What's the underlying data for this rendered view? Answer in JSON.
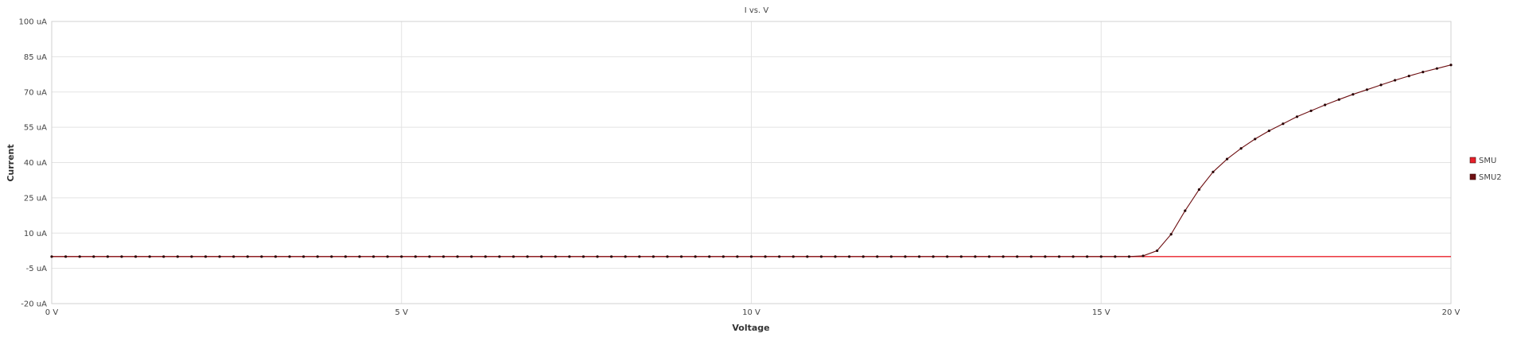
{
  "chart_data": {
    "type": "line",
    "title": "I vs. V",
    "xlabel": "Voltage",
    "ylabel": "Current",
    "xlim": [
      0,
      20
    ],
    "ylim": [
      -20,
      100
    ],
    "x_ticks": [
      {
        "value": 0,
        "label": "0 V"
      },
      {
        "value": 5,
        "label": "5 V"
      },
      {
        "value": 10,
        "label": "10 V"
      },
      {
        "value": 15,
        "label": "15 V"
      },
      {
        "value": 20,
        "label": "20 V"
      }
    ],
    "y_ticks": [
      {
        "value": 100,
        "label": "100 uA"
      },
      {
        "value": 85,
        "label": "85 uA"
      },
      {
        "value": 70,
        "label": "70 uA"
      },
      {
        "value": 55,
        "label": "55 uA"
      },
      {
        "value": 40,
        "label": "40 uA"
      },
      {
        "value": 25,
        "label": "25 uA"
      },
      {
        "value": 10,
        "label": "10 uA"
      },
      {
        "value": -5,
        "label": "-5 uA"
      },
      {
        "value": -20,
        "label": "-20 uA"
      }
    ],
    "grid": true,
    "legend_position": "right",
    "series": [
      {
        "name": "SMU",
        "color": "#e8202a",
        "marker": false,
        "x": [
          0,
          20
        ],
        "y": [
          0,
          0
        ]
      },
      {
        "name": "SMU2",
        "color": "#6e0f12",
        "marker": true,
        "x": [
          0,
          0.2,
          0.4,
          0.6,
          0.8,
          1.0,
          1.2,
          1.4,
          1.6,
          1.8,
          2.0,
          2.2,
          2.4,
          2.6,
          2.8,
          3.0,
          3.2,
          3.4,
          3.6,
          3.8,
          4.0,
          4.2,
          4.4,
          4.6,
          4.8,
          5.0,
          5.2,
          5.4,
          5.6,
          5.8,
          6.0,
          6.2,
          6.4,
          6.6,
          6.8,
          7.0,
          7.2,
          7.4,
          7.6,
          7.8,
          8.0,
          8.2,
          8.4,
          8.6,
          8.8,
          9.0,
          9.2,
          9.4,
          9.6,
          9.8,
          10.0,
          10.2,
          10.4,
          10.6,
          10.8,
          11.0,
          11.2,
          11.4,
          11.6,
          11.8,
          12.0,
          12.2,
          12.4,
          12.6,
          12.8,
          13.0,
          13.2,
          13.4,
          13.6,
          13.8,
          14.0,
          14.2,
          14.4,
          14.6,
          14.8,
          15.0,
          15.2,
          15.4,
          15.6,
          15.8,
          16.0,
          16.2,
          16.4,
          16.6,
          16.8,
          17.0,
          17.2,
          17.4,
          17.6,
          17.8,
          18.0,
          18.2,
          18.4,
          18.6,
          18.8,
          19.0,
          19.2,
          19.4,
          19.6,
          19.8,
          20.0
        ],
        "y": [
          0,
          0,
          0,
          0,
          0,
          0,
          0,
          0,
          0,
          0,
          0,
          0,
          0,
          0,
          0,
          0,
          0,
          0,
          0,
          0,
          0,
          0,
          0,
          0,
          0,
          0,
          0,
          0,
          0,
          0,
          0,
          0,
          0,
          0,
          0,
          0,
          0,
          0,
          0,
          0,
          0,
          0,
          0,
          0,
          0,
          0,
          0,
          0,
          0,
          0,
          0,
          0,
          0,
          0,
          0,
          0,
          0,
          0,
          0,
          0,
          0,
          0,
          0,
          0,
          0,
          0,
          0,
          0,
          0,
          0,
          0,
          0,
          0,
          0,
          0,
          0,
          0,
          0,
          0.3,
          2.5,
          9.5,
          19.5,
          28.5,
          36.0,
          41.5,
          46.0,
          50.0,
          53.5,
          56.5,
          59.5,
          62.0,
          64.5,
          66.8,
          69.0,
          71.0,
          73.0,
          75.0,
          76.8,
          78.5,
          80.0,
          81.5
        ]
      }
    ]
  }
}
